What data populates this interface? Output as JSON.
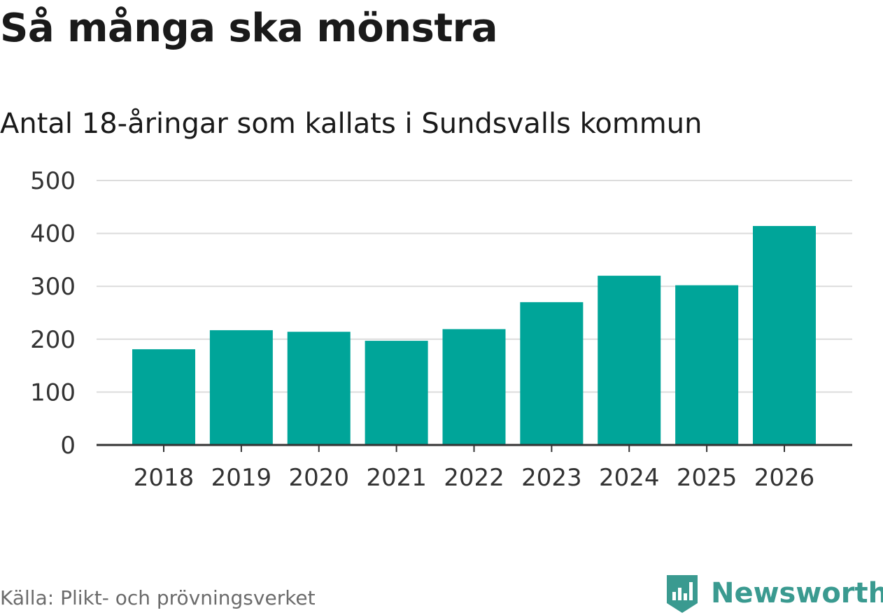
{
  "title": "Så många ska mönstra",
  "subtitle": "Antal 18-åringar som kallats i Sundsvalls kommun",
  "source": "Källa: Plikt- och prövningsverket",
  "brand": {
    "name": "Newsworthy",
    "icon": "newsworthy-logo-icon",
    "color": "#3a9a90"
  },
  "colors": {
    "bar": "#00a599",
    "grid": "#dcdcdc",
    "axis": "#333333",
    "text": "#333333"
  },
  "chart_data": {
    "type": "bar",
    "title": "Så många ska mönstra",
    "subtitle": "Antal 18-åringar som kallats i Sundsvalls kommun",
    "xlabel": "",
    "ylabel": "",
    "categories": [
      "2018",
      "2019",
      "2020",
      "2021",
      "2022",
      "2023",
      "2024",
      "2025",
      "2026"
    ],
    "values": [
      181,
      217,
      214,
      197,
      219,
      270,
      320,
      302,
      414
    ],
    "ylim": [
      0,
      500
    ],
    "yticks": [
      0,
      100,
      200,
      300,
      400,
      500
    ],
    "grid": true,
    "legend": "none"
  }
}
